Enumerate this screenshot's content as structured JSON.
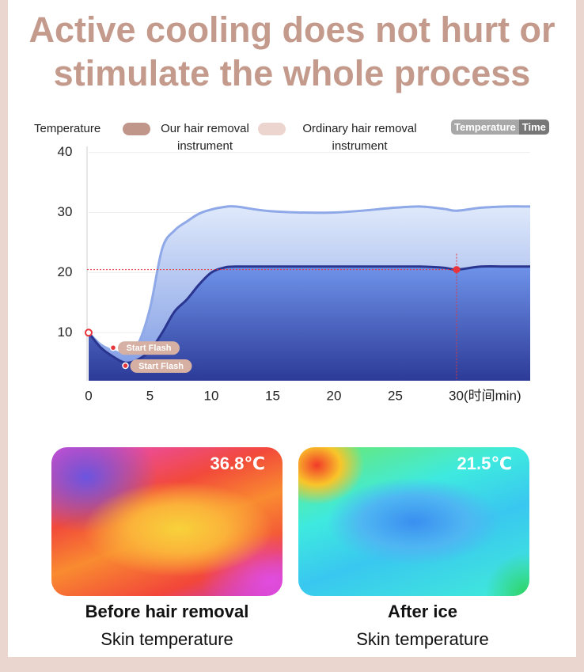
{
  "title": "Active cooling does not hurt or stimulate the whole process",
  "chart_data": {
    "type": "area",
    "y_label": "Temperature",
    "toggle": [
      "Temperature",
      "Time"
    ],
    "x": [
      0,
      1,
      2,
      3,
      4,
      5,
      6,
      7,
      8,
      9,
      10,
      11,
      12,
      15,
      20,
      25,
      27,
      29,
      30,
      32,
      34,
      36
    ],
    "series": [
      {
        "name": "Ordinary hair removal instrument",
        "color": "#ecd5cf",
        "line_color": "#8ea8e8",
        "values": [
          10,
          8,
          7,
          6.5,
          8,
          14,
          24,
          27,
          28.5,
          29.8,
          30.5,
          30.9,
          31,
          30.2,
          30,
          30.8,
          31,
          30.6,
          30.3,
          30.8,
          31,
          31
        ]
      },
      {
        "name": "Our hair removal instrument",
        "color": "#c0968a",
        "line_color": "#2a3590",
        "values": [
          10,
          7.5,
          6,
          5,
          5.5,
          7,
          10,
          13.5,
          15.5,
          18,
          20,
          20.8,
          21,
          21,
          21,
          21,
          21,
          20.8,
          20.5,
          21,
          21,
          21
        ]
      }
    ],
    "annotations": [
      {
        "text": "Start Flash",
        "x": 2,
        "y": 7.5
      },
      {
        "text": "Start Flash",
        "x": 3,
        "y": 4.5
      }
    ],
    "markers": [
      {
        "x": 0,
        "y": 10
      },
      {
        "x": 30,
        "y": 20.5
      }
    ],
    "xlim": [
      0,
      36
    ],
    "ylim": [
      2,
      41
    ],
    "xticks": [
      0,
      5,
      10,
      15,
      20,
      25,
      {
        "value": 30,
        "label": "30(时间min)"
      }
    ],
    "yticks": [
      10,
      20,
      30,
      40
    ],
    "grid": true
  },
  "panels": [
    {
      "temperature": "36.8℃",
      "caption": "Before hair removal",
      "subcaption": "Skin temperature"
    },
    {
      "temperature": "21.5℃",
      "caption": "After ice",
      "subcaption": "Skin temperature"
    }
  ]
}
